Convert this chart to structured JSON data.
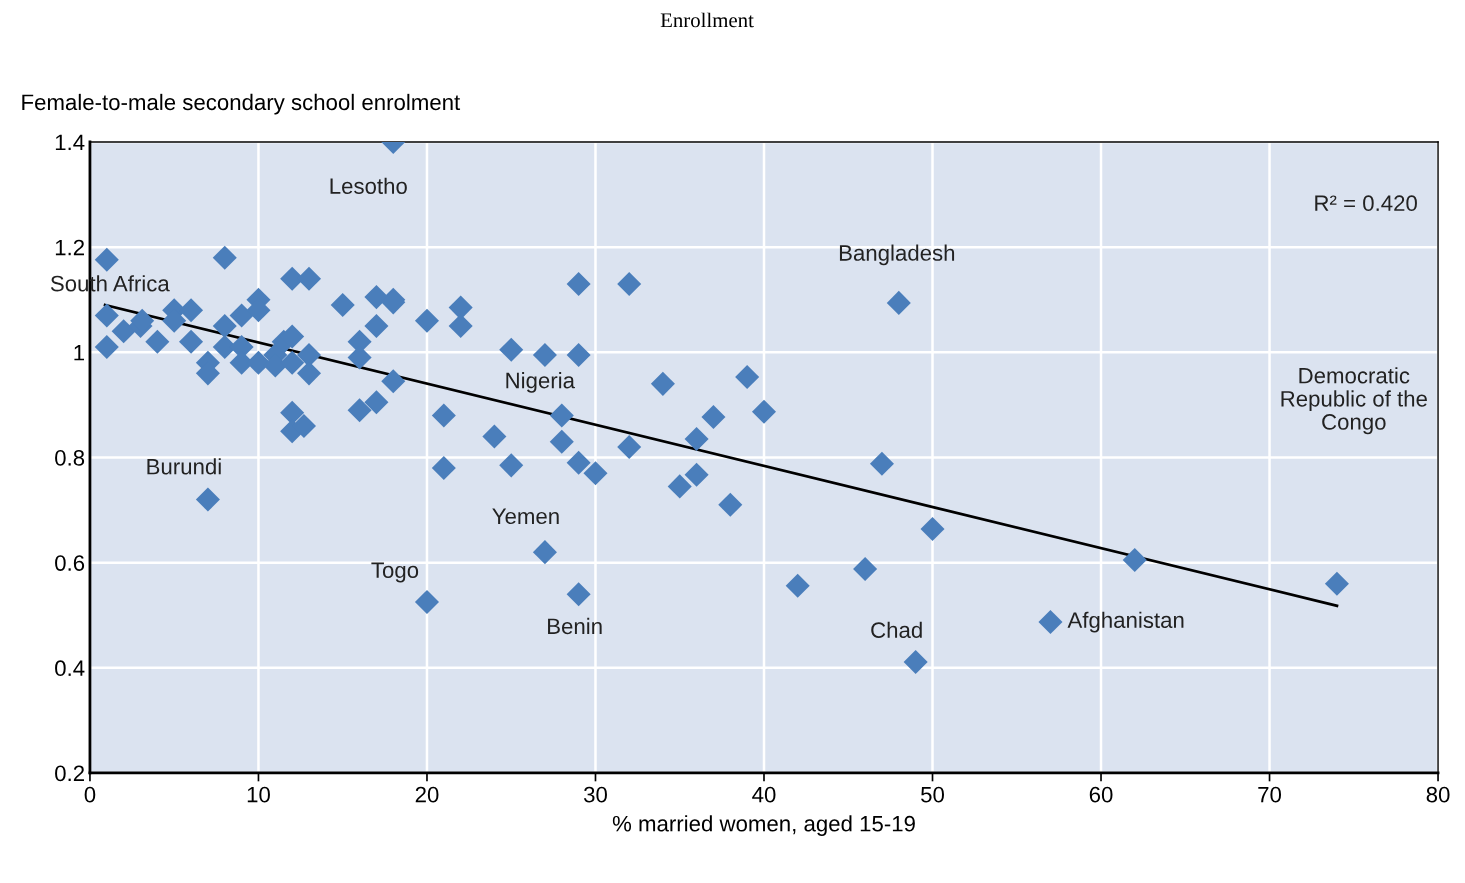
{
  "chart_data": {
    "type": "scatter",
    "title": "Enrollment",
    "xlabel": "% married women, aged 15-19",
    "ylabel": "Female-to-male secondary school enrolment",
    "xlim": [
      0,
      80
    ],
    "xticks": [
      0,
      10,
      20,
      30,
      40,
      50,
      60,
      70,
      80
    ],
    "ylim": [
      0.2,
      1.4
    ],
    "yticks": [
      0.2,
      0.4,
      0.6,
      0.8,
      1,
      1.2,
      1.4
    ],
    "grid": true,
    "legend": false,
    "series": [
      {
        "marker": "diamond",
        "color": "#4a7ebb",
        "x": [
          1,
          1,
          1,
          2,
          3,
          3.1,
          4,
          5,
          5,
          6,
          6,
          7,
          7,
          7,
          8,
          8,
          8,
          9,
          9,
          9,
          10,
          10,
          10,
          11,
          11,
          11.5,
          12,
          12,
          12,
          12,
          12,
          12.7,
          13,
          13,
          13,
          15,
          16,
          16,
          16,
          17,
          17,
          17,
          18,
          18,
          18,
          18,
          20,
          20,
          21,
          21,
          22,
          22,
          24,
          25,
          25,
          27,
          27,
          28,
          28,
          29,
          29,
          29,
          29,
          30,
          32,
          32,
          34,
          35,
          36,
          36,
          37,
          38,
          39,
          40,
          42,
          46,
          47,
          48,
          49,
          50,
          57,
          62,
          74
        ],
        "values": [
          1.176,
          1.07,
          1.01,
          1.04,
          1.05,
          1.06,
          1.02,
          1.08,
          1.06,
          1.08,
          1.02,
          0.98,
          0.96,
          0.72,
          1.18,
          1.05,
          1.01,
          1.07,
          1.01,
          0.98,
          1.1,
          1.08,
          0.98,
          0.995,
          0.975,
          1.02,
          1.14,
          1.03,
          0.98,
          0.885,
          0.85,
          0.86,
          1.14,
          0.995,
          0.96,
          1.09,
          1.02,
          0.99,
          0.89,
          1.105,
          1.05,
          0.905,
          1.1,
          1.095,
          1.4,
          0.945,
          1.06,
          0.525,
          0.88,
          0.78,
          1.085,
          1.05,
          0.84,
          1.005,
          0.785,
          0.995,
          0.62,
          0.88,
          0.83,
          1.13,
          0.995,
          0.79,
          0.54,
          0.77,
          1.13,
          0.82,
          0.94,
          0.745,
          0.835,
          0.767,
          0.877,
          0.71,
          0.953,
          0.887,
          0.556,
          0.588,
          0.788,
          1.094,
          0.411,
          0.664,
          0.487,
          0.605,
          0.56
        ]
      },
      {
        "type": "line",
        "color": "#000000",
        "x": [
          0.9,
          74
        ],
        "values": [
          1.09,
          0.518
        ]
      }
    ],
    "annotations": [
      {
        "text": "South Africa",
        "x": 1,
        "y": 1.07
      },
      {
        "text": "Lesotho",
        "x": 18,
        "y": 1.4
      },
      {
        "text": "Bangladesh",
        "x": 48,
        "y": 1.094
      },
      {
        "text": "Nigeria",
        "x": 28,
        "y": 0.88
      },
      {
        "text": "Burundi",
        "x": 7,
        "y": 0.72
      },
      {
        "text": "Yemen",
        "x": 27,
        "y": 0.62
      },
      {
        "text": "Togo",
        "x": 20,
        "y": 0.525
      },
      {
        "text": "Benin",
        "x": 29,
        "y": 0.54
      },
      {
        "text": "Chad",
        "x": 49,
        "y": 0.411
      },
      {
        "text": "Afghanistan",
        "x": 57,
        "y": 0.487
      },
      "Democratic\nRepublic of the\nCongo",
      "R² = 0.420"
    ]
  }
}
